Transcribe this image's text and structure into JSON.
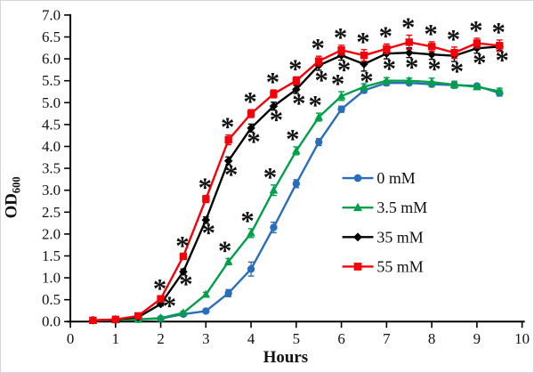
{
  "figure": {
    "x_axis": {
      "label": "Hours",
      "min": 0,
      "max": 10,
      "tick_labels": [
        "0",
        "1",
        "2",
        "3",
        "4",
        "5",
        "6",
        "7",
        "8",
        "9",
        "10"
      ]
    },
    "y_axis": {
      "label": "OD",
      "label_sub": "600",
      "min": 0,
      "max": 7,
      "tick_labels": [
        "0.0",
        "0.5",
        "1.0",
        "1.5",
        "2.0",
        "2.5",
        "3.0",
        "3.5",
        "4.0",
        "4.5",
        "5.0",
        "5.5",
        "6.0",
        "6.5",
        "7.0"
      ]
    }
  },
  "legend": {
    "items": [
      {
        "label": "0 mM",
        "color": "#2a6ebb",
        "marker": "circle"
      },
      {
        "label": "3.5 mM",
        "color": "#00a04b",
        "marker": "triangle"
      },
      {
        "label": "35 mM",
        "color": "#000000",
        "marker": "diamond"
      },
      {
        "label": "55 mM",
        "color": "#f40009",
        "marker": "square"
      }
    ]
  },
  "chart_data": {
    "type": "line",
    "title": "",
    "xlabel": "Hours",
    "ylabel": "OD600",
    "xlim": [
      0,
      10
    ],
    "ylim": [
      0,
      7
    ],
    "grid": false,
    "legend_position": "center-right",
    "x": [
      0.5,
      1,
      1.5,
      2,
      2.5,
      3,
      3.5,
      4,
      4.5,
      5,
      5.5,
      6,
      6.5,
      7,
      7.5,
      8,
      8.5,
      9,
      9.5
    ],
    "series": [
      {
        "name": "0 mM",
        "color": "#2a6ebb",
        "marker": "circle",
        "values": [
          0.03,
          0.04,
          0.05,
          0.07,
          0.17,
          0.24,
          0.65,
          1.2,
          2.15,
          3.15,
          4.1,
          4.85,
          5.28,
          5.45,
          5.45,
          5.42,
          5.4,
          5.38,
          5.22
        ],
        "errors": [
          0.02,
          0.02,
          0.02,
          0.02,
          0.04,
          0.04,
          0.08,
          0.16,
          0.12,
          0.09,
          0.08,
          0.07,
          0.06,
          0.06,
          0.05,
          0.06,
          0.06,
          0.05,
          0.07
        ],
        "sig_hours": [],
        "sig_pos": "none",
        "sig_color": "#2a6ebb"
      },
      {
        "name": "3.5 mM",
        "color": "#00a04b",
        "marker": "triangle",
        "values": [
          0.03,
          0.04,
          0.05,
          0.08,
          0.2,
          0.62,
          1.37,
          2.02,
          3.0,
          3.9,
          4.67,
          5.15,
          5.36,
          5.5,
          5.5,
          5.47,
          5.41,
          5.36,
          5.26
        ],
        "errors": [
          0.02,
          0.02,
          0.02,
          0.02,
          0.04,
          0.05,
          0.07,
          0.1,
          0.12,
          0.09,
          0.09,
          0.1,
          0.07,
          0.07,
          0.06,
          0.09,
          0.08,
          0.06,
          0.07
        ],
        "sig_hours": [
          3.5,
          4,
          4.5,
          5,
          5.5,
          6
        ],
        "sig_pos": "above",
        "sig_color": "#00a04b"
      },
      {
        "name": "35 mM",
        "color": "#000000",
        "marker": "diamond",
        "values": [
          0.03,
          0.05,
          0.1,
          0.4,
          1.14,
          2.32,
          3.67,
          4.42,
          4.92,
          5.3,
          5.85,
          6.08,
          5.88,
          6.12,
          6.14,
          6.1,
          6.07,
          6.24,
          6.28
        ],
        "errors": [
          0.02,
          0.02,
          0.03,
          0.04,
          0.06,
          0.07,
          0.09,
          0.09,
          0.09,
          0.09,
          0.11,
          0.11,
          0.16,
          0.12,
          0.11,
          0.11,
          0.13,
          0.11,
          0.09
        ],
        "sig_hours": [
          2,
          2.5,
          3,
          3.5,
          4,
          4.5,
          5,
          5.5,
          6,
          6.5,
          7,
          7.5,
          8,
          8.5,
          9,
          9.5
        ],
        "sig_pos": "below",
        "sig_color": "#000000"
      },
      {
        "name": "55 mM",
        "color": "#f40009",
        "marker": "square",
        "values": [
          0.03,
          0.05,
          0.13,
          0.52,
          1.49,
          2.8,
          4.15,
          4.75,
          5.2,
          5.5,
          5.95,
          6.2,
          6.08,
          6.23,
          6.38,
          6.28,
          6.14,
          6.36,
          6.3
        ],
        "errors": [
          0.02,
          0.02,
          0.03,
          0.05,
          0.06,
          0.08,
          0.11,
          0.09,
          0.09,
          0.09,
          0.11,
          0.11,
          0.13,
          0.11,
          0.16,
          0.11,
          0.13,
          0.11,
          0.13
        ],
        "sig_hours": [
          2,
          2.5,
          3,
          3.5,
          4,
          4.5,
          5,
          5.5,
          6,
          6.5,
          7,
          7.5,
          8,
          8.5,
          9,
          9.5
        ],
        "sig_pos": "above",
        "sig_color": "#f40009"
      }
    ]
  }
}
